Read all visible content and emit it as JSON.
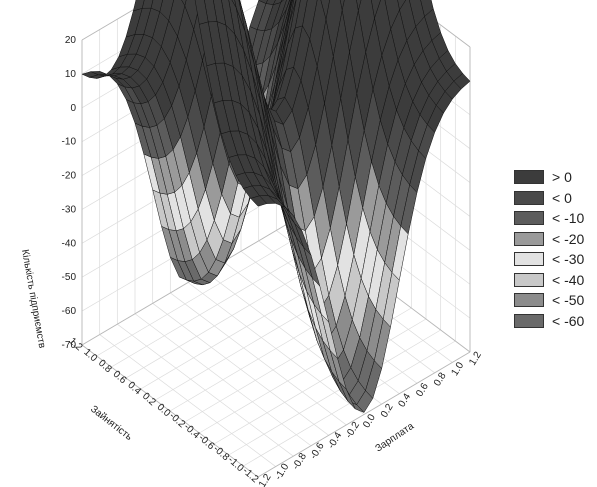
{
  "chart_data": {
    "type": "surface",
    "title": "",
    "zlabel": "Кількість підприємств",
    "xlabel": "Зарплата",
    "ylabel": "Зайнятість",
    "x_ticks": [
      "-1.2",
      "-1.0",
      "-0.8",
      "-0.6",
      "-0.4",
      "-0.2",
      "0.0",
      "0.2",
      "0.4",
      "0.6",
      "0.8",
      "1.0",
      "1.2"
    ],
    "y_ticks": [
      "1.2",
      "1.0",
      "0.8",
      "0.6",
      "0.4",
      "0.2",
      "0.0",
      "-0.2",
      "-0.4",
      "-0.6",
      "-0.8",
      "-1.0",
      "-1.2"
    ],
    "z_ticks": [
      "20",
      "10",
      "0",
      "-10",
      "-20",
      "-30",
      "-40",
      "-50",
      "-60",
      "-70"
    ],
    "xlim": [
      -1.2,
      1.2
    ],
    "ylim": [
      -1.2,
      1.2
    ],
    "zlim": [
      -70,
      20
    ],
    "surface_description": "saddle surface: high (~10) along the Зарплата extremes, low (~-70) along the Зайнятість extremes, ~0 at the center",
    "legend": [
      {
        "label": "> 0",
        "color": "#3c3c3c"
      },
      {
        "label": "< 0",
        "color": "#4a4a4a"
      },
      {
        "label": "< -10",
        "color": "#5c5c5c"
      },
      {
        "label": "< -20",
        "color": "#9a9a9a"
      },
      {
        "label": "< -30",
        "color": "#e2e2e2"
      },
      {
        "label": "< -40",
        "color": "#c8c8c8"
      },
      {
        "label": "< -50",
        "color": "#8c8c8c"
      },
      {
        "label": "< -60",
        "color": "#6a6a6a"
      }
    ],
    "grid": true,
    "legend_position": "right"
  }
}
